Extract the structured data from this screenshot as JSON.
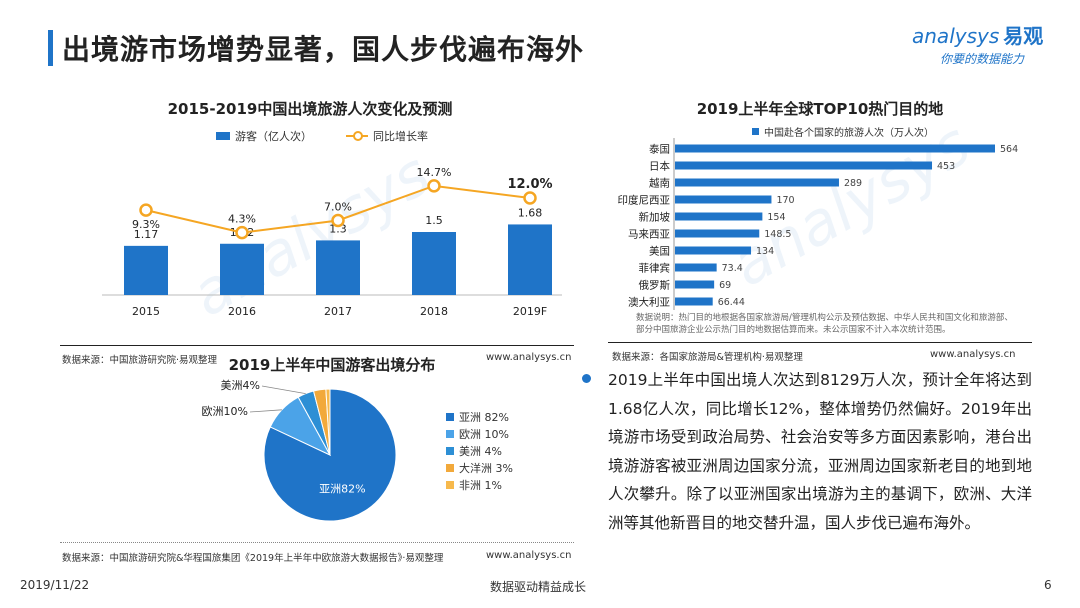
{
  "page": {
    "title": "出境游市场增势显著，国人步伐遍布海外",
    "date": "2019/11/22",
    "footer_center": "数据驱动精益成长",
    "page_number": "6"
  },
  "logo": {
    "word": "analysys",
    "cn": "易观",
    "slogan": "你要的数据能力"
  },
  "colors": {
    "accent": "#1f74c8",
    "line": "#f5a623"
  },
  "charts": {
    "trend": {
      "source": "数据来源：中国旅游研究院·易观整理",
      "url": "www.analysys.cn"
    },
    "top10": {
      "note": "数据说明：热门目的地根据各国家旅游局/管理机构公示及预估数据、中华人民共和国文化和旅游部、部分中国旅游企业公示热门目的地数据估算而来。未公示国家不计入本次统计范围。",
      "source": "数据来源：各国家旅游局&管理机构·易观整理",
      "url": "www.analysys.cn"
    },
    "pie": {
      "source": "数据来源：中国旅游研究院&华程国旅集团《2019年上半年中欧旅游大数据报告》·易观整理",
      "url": "www.analysys.cn"
    }
  },
  "chart_data": [
    {
      "type": "bar",
      "title": "2015-2019中国出境旅游人次变化及预测",
      "categories": [
        "2015",
        "2016",
        "2017",
        "2018",
        "2019F"
      ],
      "series": [
        {
          "name": "游客（亿人次）",
          "type": "bar",
          "values": [
            1.17,
            1.22,
            1.3,
            1.5,
            1.68
          ],
          "labels": [
            "1.17",
            "1.22",
            "1.3",
            "1.5",
            "1.68"
          ]
        },
        {
          "name": "同比增长率",
          "type": "line",
          "values": [
            9.3,
            4.3,
            7.0,
            14.7,
            12.0
          ],
          "labels": [
            "9.3%",
            "4.3%",
            "7.0%",
            "14.7%",
            "12.0%"
          ]
        }
      ]
    },
    {
      "type": "bar",
      "orientation": "horizontal",
      "title": "2019上半年全球TOP10热门目的地",
      "series_name": "中国赴各个国家的旅游人次（万人次）",
      "categories": [
        "泰国",
        "日本",
        "越南",
        "印度尼西亚",
        "新加坡",
        "马来西亚",
        "美国",
        "菲律宾",
        "俄罗斯",
        "澳大利亚"
      ],
      "values": [
        564,
        453,
        289,
        170,
        154,
        148.5,
        134,
        73.4,
        69,
        66.44
      ],
      "labels": [
        "564",
        "453",
        "289",
        "170",
        "154",
        "148.5",
        "134",
        "73.4",
        "69",
        "66.44"
      ]
    },
    {
      "type": "pie",
      "title": "2019上半年中国游客出境分布",
      "slices": [
        {
          "name": "亚洲",
          "value": 82,
          "legend": "亚洲 82%",
          "label": "亚洲82%",
          "color": "#1f74c8"
        },
        {
          "name": "欧洲",
          "value": 10,
          "legend": "欧洲 10%",
          "label": "欧洲10%",
          "color": "#4ba3e8"
        },
        {
          "name": "美洲",
          "value": 4,
          "legend": "美洲 4%",
          "label": "美洲4%",
          "color": "#2d8fd5"
        },
        {
          "name": "大洋洲",
          "value": 3,
          "legend": "大洋洲 3%",
          "label": "",
          "color": "#f2a93b"
        },
        {
          "name": "非洲",
          "value": 1,
          "legend": "非洲 1%",
          "label": "",
          "color": "#f7b94c"
        }
      ]
    }
  ],
  "summary": "2019上半年中国出境人次达到8129万人次，预计全年将达到1.68亿人次，同比增长12%，整体增势仍然偏好。2019年出境游市场受到政治局势、社会治安等多方面因素影响，港台出境游游客被亚洲周边国家分流，亚洲周边国家新老目的地到地人次攀升。除了以亚洲国家出境游为主的基调下，欧洲、大洋洲等其他新晋目的地交替升温，国人步伐已遍布海外。"
}
